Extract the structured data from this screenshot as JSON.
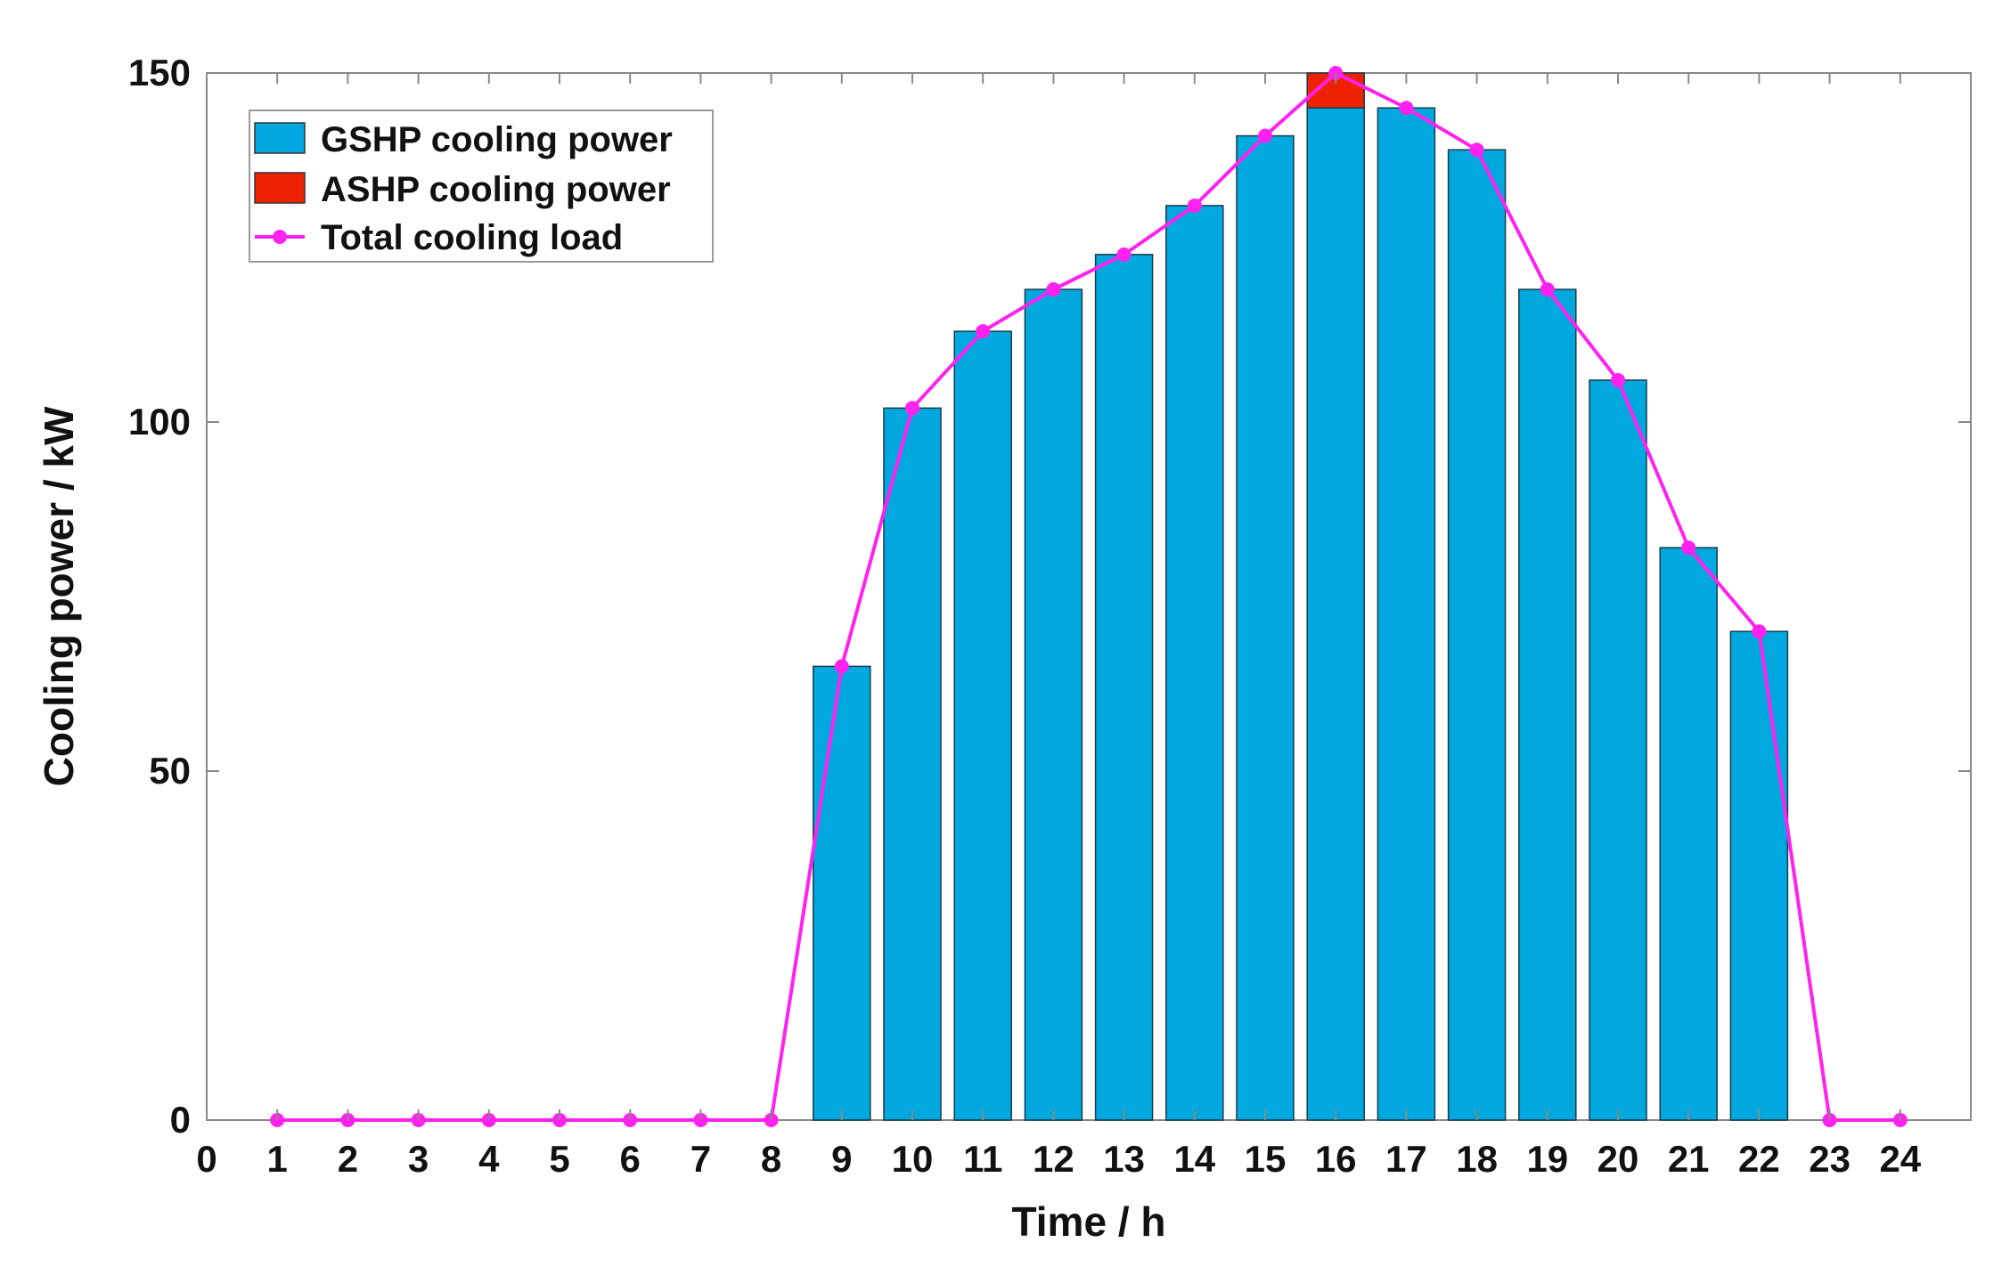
{
  "chart_data": {
    "type": "bar",
    "title": "",
    "xlabel": "Time  / h",
    "ylabel": "Cooling power  /  kW",
    "xlim": [
      0,
      25
    ],
    "ylim": [
      0,
      150
    ],
    "x_ticks": [
      0,
      1,
      2,
      3,
      4,
      5,
      6,
      7,
      8,
      9,
      10,
      11,
      12,
      13,
      14,
      15,
      16,
      17,
      18,
      19,
      20,
      21,
      22,
      23,
      24
    ],
    "y_ticks": [
      0,
      50,
      100,
      150
    ],
    "stacked": true,
    "grid": false,
    "legend_position": "top-left",
    "x": [
      1,
      2,
      3,
      4,
      5,
      6,
      7,
      8,
      9,
      10,
      11,
      12,
      13,
      14,
      15,
      16,
      17,
      18,
      19,
      20,
      21,
      22,
      23,
      24
    ],
    "series": [
      {
        "name": "GSHP cooling power",
        "type": "bar",
        "color": "#00a8e0",
        "values": [
          0,
          0,
          0,
          0,
          0,
          0,
          0,
          0,
          65,
          102,
          113,
          119,
          124,
          131,
          141,
          145,
          145,
          139,
          119,
          106,
          82,
          70,
          0,
          0
        ]
      },
      {
        "name": "ASHP cooling power",
        "type": "bar",
        "color": "#ee2200",
        "values": [
          0,
          0,
          0,
          0,
          0,
          0,
          0,
          0,
          0,
          0,
          0,
          0,
          0,
          0,
          0,
          5,
          0,
          0,
          0,
          0,
          0,
          0,
          0,
          0
        ]
      },
      {
        "name": "Total cooling load",
        "type": "line",
        "color": "#ff22ee",
        "values": [
          0,
          0,
          0,
          0,
          0,
          0,
          0,
          0,
          65,
          102,
          113,
          119,
          124,
          131,
          141,
          150,
          145,
          139,
          119,
          106,
          82,
          70,
          0,
          0
        ]
      }
    ]
  }
}
